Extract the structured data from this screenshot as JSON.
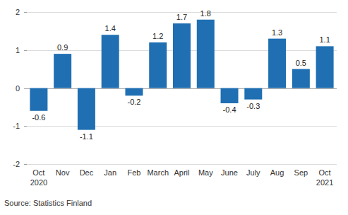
{
  "chart_data": {
    "type": "bar",
    "categories": [
      "Oct\n2020",
      "Nov",
      "Dec",
      "Jan",
      "Feb",
      "March",
      "April",
      "May",
      "June",
      "July",
      "Aug",
      "Sep",
      "Oct\n2021"
    ],
    "values": [
      -0.6,
      0.9,
      -1.1,
      1.4,
      -0.2,
      1.2,
      1.7,
      1.8,
      -0.4,
      -0.3,
      1.3,
      0.5,
      1.1
    ],
    "color": "#1f6fb2",
    "ylim": [
      -2,
      2
    ],
    "yticks": [
      -2,
      -1,
      0,
      1,
      2
    ],
    "grid": true,
    "data_labels": true,
    "source": "Source: Statistics Finland"
  }
}
